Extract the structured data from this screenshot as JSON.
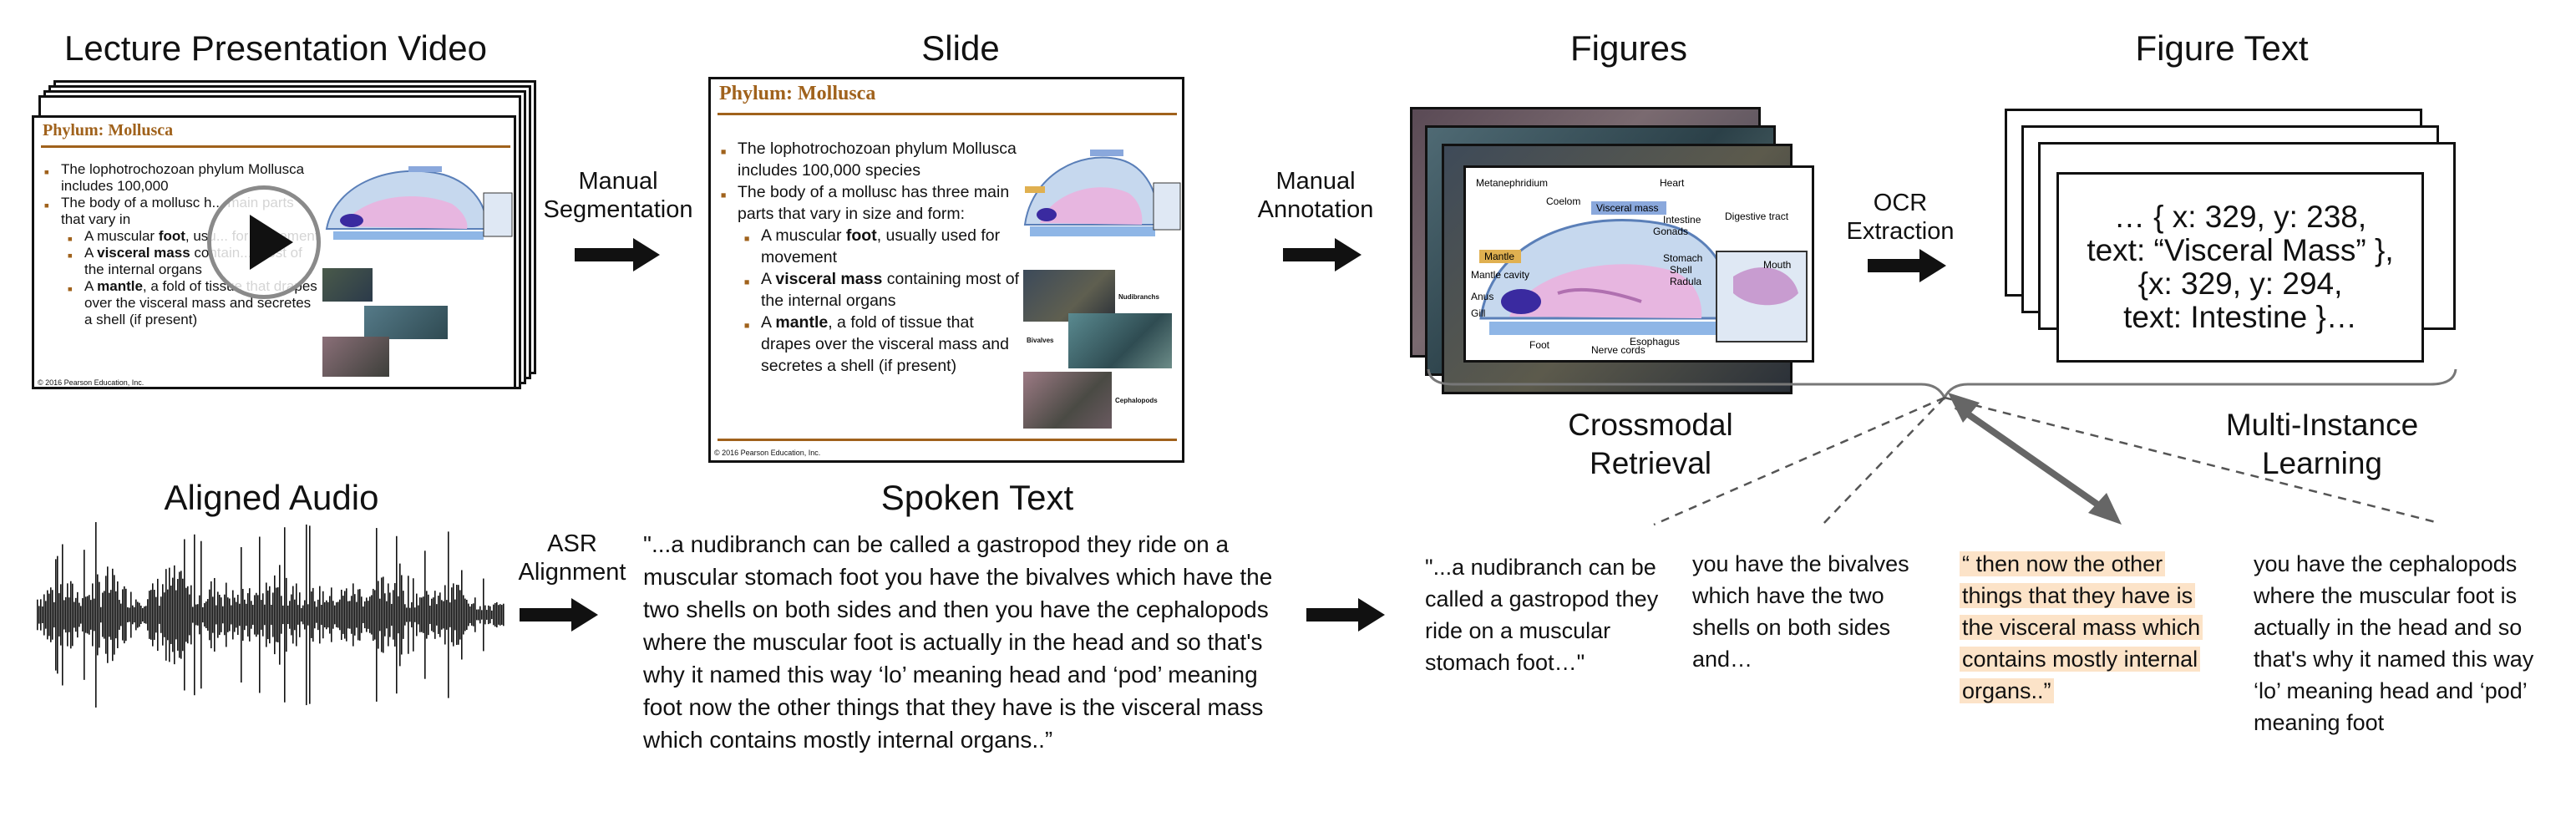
{
  "headings": {
    "video": "Lecture Presentation Video",
    "slide": "Slide",
    "figures": "Figures",
    "figure_text": "Figure Text",
    "audio": "Aligned Audio",
    "spoken": "Spoken Text"
  },
  "steps": {
    "segmentation": [
      "Manual",
      "Segmentation"
    ],
    "annotation": [
      "Manual",
      "Annotation"
    ],
    "ocr": [
      "OCR",
      "Extraction"
    ],
    "asr": [
      "ASR",
      "Alignment"
    ]
  },
  "retrieval": {
    "crossmodal": [
      "Crossmodal",
      "Retrieval"
    ],
    "mil": [
      "Multi-Instance",
      "Learning"
    ]
  },
  "slide": {
    "title": "Phylum: Mollusca",
    "b1": "The lophotrochozoan phylum Mollusca includes 100,000 species",
    "b2": "The body of a mollusc has three main parts that vary in size and form:",
    "s1_pre": "A muscular ",
    "s1_bold": "foot",
    "s1_post": ", usually used for movement",
    "s2_pre": "A ",
    "s2_bold": "visceral mass",
    "s2_post": " containing most of the internal organs",
    "s3_pre": "A ",
    "s3_bold": "mantle",
    "s3_post": ", a fold of tissue that drapes over the visceral mass and secretes a shell (if present)",
    "footer": "© 2016 Pearson Education, Inc.",
    "fig_labels": {
      "nudibranchs": "Nudibranchs",
      "bivalves": "Bivalves",
      "cephalopods": "Cephalopods"
    }
  },
  "video_slide": {
    "title": "Phylum: Mollusca",
    "b1": "The lophotrochozoan phylum Mollusca includes 100,000",
    "b2": "The body of a mollusc h... main parts that vary in",
    "s1_pre": "A muscular ",
    "s1_bold": "foot",
    "s1_post": ", usu... for movement",
    "s2_pre": "A ",
    "s2_bold": "visceral mass",
    "s2_post": " contain... most of the internal organs",
    "s3_pre": "A ",
    "s3_bold": "mantle",
    "s3_post": ", a fold of tissue that drapes over the visceral mass and secretes a shell (if present)",
    "footer": "© 2016 Pearson Education, Inc."
  },
  "diagram_labels": {
    "metanephridium": "Metanephridium",
    "heart": "Heart",
    "coelom": "Coelom",
    "visceral_mass": "Visceral mass",
    "intestine": "Intestine",
    "gonads": "Gonads",
    "digestive_tract": "Digestive tract",
    "mantle": "Mantle",
    "mantle_cavity": "Mantle cavity",
    "stomach": "Stomach",
    "shell": "Shell",
    "radula": "Radula",
    "mouth": "Mouth",
    "anus": "Anus",
    "gill": "Gill",
    "foot": "Foot",
    "nerve_cords": "Nerve cords",
    "esophagus": "Esophagus"
  },
  "figure_text": {
    "line1": "… { x: 329, y: 238,",
    "line2": "text: “Visceral Mass” },",
    "line3": "{x: 329, y: 294,",
    "line4": "text: Intestine }…"
  },
  "spoken_text": "\"...a nudibranch can be called  a gastropod they ride on a muscular stomach foot you have the bivalves which  have the two shells on both sides and then you have the cephalopods where the muscular foot is actually in the head and so that's why it named this way  ‘lo’ meaning head and ‘pod’ meaning foot now the other things that they have is the visceral mass which contains mostly internal organs..”",
  "snippets": {
    "s1": "\"...a nudibranch can be called  a gastropod they ride on a muscular stomach foot…\"",
    "s2": "you have the bivalves which  have the two shells on both sides and…",
    "s3": "“ then now the other things that they have is the visceral mass which contains mostly internal organs..”",
    "s4": "you have the cephalopods where the muscular foot is actually in the head and so that's why it named this way ‘lo’ meaning head and ‘pod’ meaning foot"
  },
  "colors": {
    "highlight": "#fce3c8",
    "slide_accent": "#a0621c",
    "arrow_gray": "#666666"
  }
}
